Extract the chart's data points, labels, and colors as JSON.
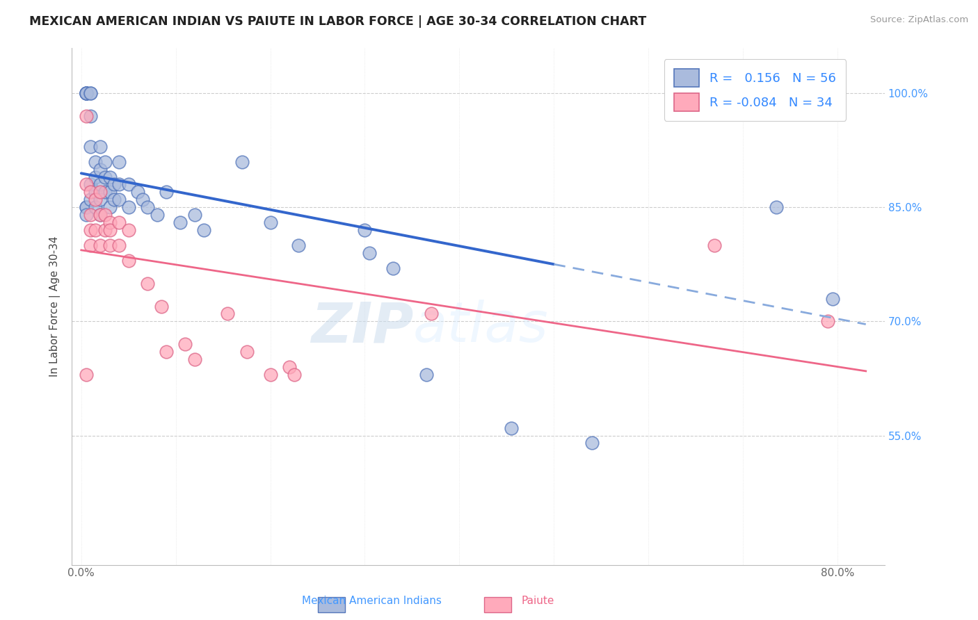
{
  "title": "MEXICAN AMERICAN INDIAN VS PAIUTE IN LABOR FORCE | AGE 30-34 CORRELATION CHART",
  "source": "Source: ZipAtlas.com",
  "ylabel": "In Labor Force | Age 30-34",
  "xlim": [
    -0.01,
    0.85
  ],
  "ylim": [
    0.38,
    1.06
  ],
  "right_yticks": [
    0.55,
    0.7,
    0.85,
    1.0
  ],
  "right_ytick_labels": [
    "55.0%",
    "70.0%",
    "85.0%",
    "100.0%"
  ],
  "legend_blue_label": "Mexican American Indians",
  "legend_pink_label": "Paiute",
  "R_blue": 0.156,
  "N_blue": 56,
  "R_pink": -0.084,
  "N_pink": 34,
  "blue_fill": "#aabbdd",
  "blue_edge": "#5577bb",
  "pink_fill": "#ffaabb",
  "pink_edge": "#dd6688",
  "blue_line_color": "#3366cc",
  "blue_dash_color": "#88aadd",
  "pink_line_color": "#ee6688",
  "watermark_zip": "ZIP",
  "watermark_atlas": "atlas",
  "blue_points_x": [
    0.005,
    0.005,
    0.005,
    0.005,
    0.005,
    0.005,
    0.005,
    0.005,
    0.01,
    0.01,
    0.01,
    0.01,
    0.01,
    0.01,
    0.015,
    0.015,
    0.015,
    0.015,
    0.02,
    0.02,
    0.02,
    0.02,
    0.02,
    0.025,
    0.025,
    0.025,
    0.03,
    0.03,
    0.03,
    0.035,
    0.035,
    0.04,
    0.04,
    0.04,
    0.05,
    0.05,
    0.06,
    0.065,
    0.07,
    0.08,
    0.09,
    0.105,
    0.12,
    0.13,
    0.17,
    0.2,
    0.23,
    0.3,
    0.305,
    0.33,
    0.365,
    0.455,
    0.54,
    0.735,
    0.77,
    0.795
  ],
  "blue_points_y": [
    1.0,
    1.0,
    1.0,
    1.0,
    1.0,
    0.85,
    0.85,
    0.84,
    1.0,
    1.0,
    0.97,
    0.93,
    0.88,
    0.86,
    0.91,
    0.89,
    0.87,
    0.85,
    0.93,
    0.9,
    0.88,
    0.86,
    0.84,
    0.91,
    0.89,
    0.87,
    0.89,
    0.87,
    0.85,
    0.88,
    0.86,
    0.91,
    0.88,
    0.86,
    0.88,
    0.85,
    0.87,
    0.86,
    0.85,
    0.84,
    0.87,
    0.83,
    0.84,
    0.82,
    0.91,
    0.83,
    0.8,
    0.82,
    0.79,
    0.77,
    0.63,
    0.56,
    0.54,
    0.85,
    1.0,
    0.73
  ],
  "pink_points_x": [
    0.005,
    0.005,
    0.005,
    0.01,
    0.01,
    0.01,
    0.01,
    0.015,
    0.015,
    0.02,
    0.02,
    0.02,
    0.025,
    0.025,
    0.03,
    0.03,
    0.03,
    0.04,
    0.04,
    0.05,
    0.05,
    0.07,
    0.085,
    0.09,
    0.11,
    0.12,
    0.155,
    0.175,
    0.2,
    0.22,
    0.225,
    0.37,
    0.67,
    0.79
  ],
  "pink_points_y": [
    0.97,
    0.88,
    0.63,
    0.87,
    0.84,
    0.82,
    0.8,
    0.86,
    0.82,
    0.87,
    0.84,
    0.8,
    0.84,
    0.82,
    0.83,
    0.82,
    0.8,
    0.83,
    0.8,
    0.82,
    0.78,
    0.75,
    0.72,
    0.66,
    0.67,
    0.65,
    0.71,
    0.66,
    0.63,
    0.64,
    0.63,
    0.71,
    0.8,
    0.7
  ]
}
